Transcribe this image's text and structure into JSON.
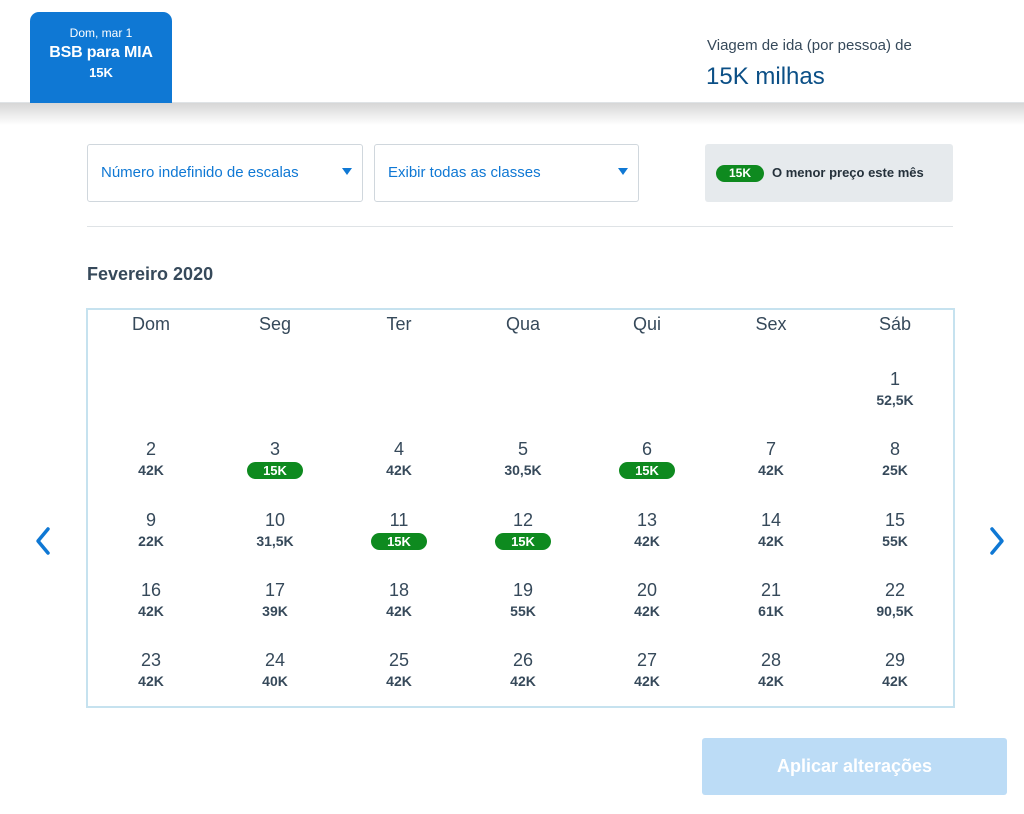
{
  "header": {
    "flight_tab": {
      "date": "Dom, mar 1",
      "route": "BSB para MIA",
      "price": "15K"
    },
    "trip_label": "Viagem de ida (por pessoa) de",
    "trip_miles": "15K milhas"
  },
  "filters": {
    "stops": {
      "label": "Número indefinido de escalas",
      "icon": "chevron-down-icon"
    },
    "classes": {
      "label": "Exibir todas as classes",
      "icon": "chevron-down-icon"
    },
    "legend": {
      "badge": "15K",
      "text": "O menor preço este mês"
    }
  },
  "calendar": {
    "month": "Fevereiro 2020",
    "weekdays": [
      "Dom",
      "Seg",
      "Ter",
      "Qua",
      "Qui",
      "Sex",
      "Sáb"
    ],
    "days": [
      {
        "day": "1",
        "price": "52,5K",
        "lowest": false
      },
      {
        "day": "2",
        "price": "42K",
        "lowest": false
      },
      {
        "day": "3",
        "price": "15K",
        "lowest": true
      },
      {
        "day": "4",
        "price": "42K",
        "lowest": false
      },
      {
        "day": "5",
        "price": "30,5K",
        "lowest": false
      },
      {
        "day": "6",
        "price": "15K",
        "lowest": true
      },
      {
        "day": "7",
        "price": "42K",
        "lowest": false
      },
      {
        "day": "8",
        "price": "25K",
        "lowest": false
      },
      {
        "day": "9",
        "price": "22K",
        "lowest": false
      },
      {
        "day": "10",
        "price": "31,5K",
        "lowest": false
      },
      {
        "day": "11",
        "price": "15K",
        "lowest": true
      },
      {
        "day": "12",
        "price": "15K",
        "lowest": true
      },
      {
        "day": "13",
        "price": "42K",
        "lowest": false
      },
      {
        "day": "14",
        "price": "42K",
        "lowest": false
      },
      {
        "day": "15",
        "price": "55K",
        "lowest": false
      },
      {
        "day": "16",
        "price": "42K",
        "lowest": false
      },
      {
        "day": "17",
        "price": "39K",
        "lowest": false
      },
      {
        "day": "18",
        "price": "42K",
        "lowest": false
      },
      {
        "day": "19",
        "price": "55K",
        "lowest": false
      },
      {
        "day": "20",
        "price": "42K",
        "lowest": false
      },
      {
        "day": "21",
        "price": "61K",
        "lowest": false
      },
      {
        "day": "22",
        "price": "90,5K",
        "lowest": false
      },
      {
        "day": "23",
        "price": "42K",
        "lowest": false
      },
      {
        "day": "24",
        "price": "40K",
        "lowest": false
      },
      {
        "day": "25",
        "price": "42K",
        "lowest": false
      },
      {
        "day": "26",
        "price": "42K",
        "lowest": false
      },
      {
        "day": "27",
        "price": "42K",
        "lowest": false
      },
      {
        "day": "28",
        "price": "42K",
        "lowest": false
      },
      {
        "day": "29",
        "price": "42K",
        "lowest": false
      }
    ],
    "prev_icon": "chevron-left-icon",
    "next_icon": "chevron-right-icon"
  },
  "apply_button": {
    "label": "Aplicar alterações",
    "enabled": false
  },
  "colors": {
    "brand_blue": "#0f78d4",
    "lowest_green": "#0e8a1f",
    "button_disabled": "#bcdcf6"
  }
}
